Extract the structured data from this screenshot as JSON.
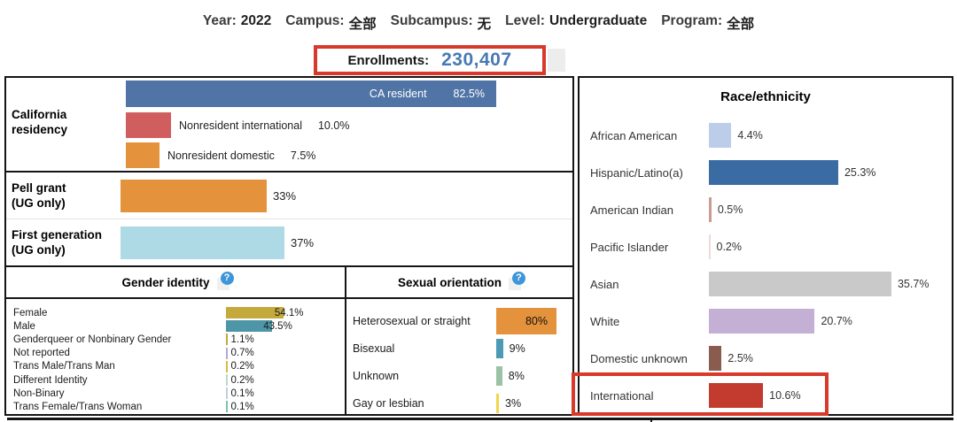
{
  "filters": {
    "items": [
      {
        "label": "Year:",
        "value": "2022"
      },
      {
        "label": "Campus:",
        "value": "全部"
      },
      {
        "label": "Subcampus:",
        "value": "无"
      },
      {
        "label": "Level:",
        "value": "Undergraduate"
      },
      {
        "label": "Program:",
        "value": "全部"
      }
    ]
  },
  "enrollments": {
    "label": "Enrollments:",
    "value": "230,407",
    "value_color": "#4779b4"
  },
  "icons": {
    "help": "?"
  },
  "highlight_color": "#d8392a",
  "chart_data": [
    {
      "id": "california-residency",
      "type": "bar",
      "title": "California residency",
      "categories": [
        "CA resident",
        "Nonresident international",
        "Nonresident domestic"
      ],
      "values": [
        82.5,
        10.0,
        7.5
      ],
      "value_labels": [
        "82.5%",
        "10.0%",
        "7.5%"
      ],
      "colors": [
        "#4f74a5",
        "#d15e5e",
        "#e5923c"
      ]
    },
    {
      "id": "undergrad-aid",
      "type": "bar",
      "title": "",
      "categories": [
        "Pell grant",
        "First generation"
      ],
      "category_suffix": "(UG only)",
      "values": [
        33,
        37
      ],
      "value_labels": [
        "33%",
        "37%"
      ],
      "colors": [
        "#e5923c",
        "#aedae5"
      ]
    },
    {
      "id": "gender-identity",
      "type": "bar",
      "title": "Gender identity",
      "categories": [
        "Female",
        "Male",
        "Genderqueer or Nonbinary Gender",
        "Not reported",
        "Trans Male/Trans Man",
        "Different Identity",
        "Non-Binary",
        "Trans Female/Trans Woman"
      ],
      "values": [
        54.1,
        43.5,
        1.1,
        0.7,
        0.2,
        0.2,
        0.1,
        0.1
      ],
      "value_labels": [
        "54.1%",
        "43.5%",
        "1.1%",
        "0.7%",
        "0.2%",
        "0.2%",
        "0.1%",
        "0.1%"
      ],
      "colors": [
        "#c4a93c",
        "#4d96a8",
        "#c4a93c",
        "#b2aad2",
        "#d8bd3f",
        "#bcd9c6",
        "#c3cfd6",
        "#7cc6ad"
      ]
    },
    {
      "id": "sexual-orientation",
      "type": "bar",
      "title": "Sexual orientation",
      "categories": [
        "Heterosexual or straight",
        "Bisexual",
        "Unknown",
        "Gay or lesbian"
      ],
      "values": [
        80,
        9,
        8,
        3
      ],
      "value_labels": [
        "80%",
        "9%",
        "8%",
        "3%"
      ],
      "colors": [
        "#e5923c",
        "#4d9ab5",
        "#9cc2a6",
        "#f4d44d"
      ]
    },
    {
      "id": "race-ethnicity",
      "type": "bar",
      "title": "Race/ethnicity",
      "categories": [
        "African American",
        "Hispanic/Latino(a)",
        "American Indian",
        "Pacific Islander",
        "Asian",
        "White",
        "Domestic unknown",
        "International"
      ],
      "values": [
        4.4,
        25.3,
        0.5,
        0.2,
        35.7,
        20.7,
        2.5,
        10.6
      ],
      "value_labels": [
        "4.4%",
        "25.3%",
        "0.5%",
        "0.2%",
        "35.7%",
        "20.7%",
        "2.5%",
        "10.6%"
      ],
      "colors": [
        "#bccde9",
        "#3a6ba3",
        "#c89c92",
        "#eddadb",
        "#c9c9c9",
        "#c5b0d5",
        "#8a5c50",
        "#c33a2f"
      ],
      "highlighted_category": "International"
    }
  ]
}
